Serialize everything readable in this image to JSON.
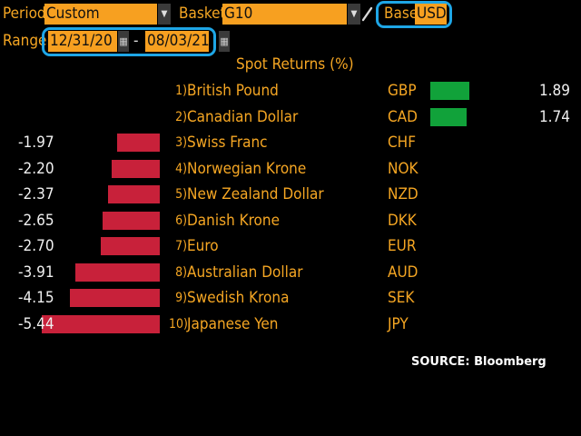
{
  "toolbar": {
    "period_label": "Period",
    "period_value": "Custom",
    "basket_label": "Basket",
    "basket_value": "G10",
    "base_label": "Base",
    "base_value": "USD",
    "range_label": "Range",
    "range_start": "12/31/20",
    "range_separator": "-",
    "range_end": "08/03/21"
  },
  "chart_title": "Spot Returns (%)",
  "source": "SOURCE: Bloomberg",
  "colors": {
    "accent": "#f5a623",
    "positive": "#11a23a",
    "negative": "#c8213a",
    "highlight": "#1ea6e6"
  },
  "chart_data": {
    "type": "bar",
    "title": "Spot Returns (%)",
    "rows": [
      {
        "rank": "1)",
        "name": "British Pound",
        "code": "GBP",
        "value": 1.89,
        "label": "1.89"
      },
      {
        "rank": "2)",
        "name": "Canadian Dollar",
        "code": "CAD",
        "value": 1.74,
        "label": "1.74"
      },
      {
        "rank": "3)",
        "name": "Swiss Franc",
        "code": "CHF",
        "value": -1.97,
        "label": "-1.97"
      },
      {
        "rank": "4)",
        "name": "Norwegian Krone",
        "code": "NOK",
        "value": -2.2,
        "label": "-2.20"
      },
      {
        "rank": "5)",
        "name": "New Zealand Dollar",
        "code": "NZD",
        "value": -2.37,
        "label": "-2.37"
      },
      {
        "rank": "6)",
        "name": "Danish Krone",
        "code": "DKK",
        "value": -2.65,
        "label": "-2.65"
      },
      {
        "rank": "7)",
        "name": "Euro",
        "code": "EUR",
        "value": -2.7,
        "label": "-2.70"
      },
      {
        "rank": "8)",
        "name": "Australian Dollar",
        "code": "AUD",
        "value": -3.91,
        "label": "-3.91"
      },
      {
        "rank": "9)",
        "name": "Swedish Krona",
        "code": "SEK",
        "value": -4.15,
        "label": "-4.15"
      },
      {
        "rank": "10)",
        "name": "Japanese Yen",
        "code": "JPY",
        "value": -5.44,
        "label": "-5.44"
      }
    ]
  }
}
